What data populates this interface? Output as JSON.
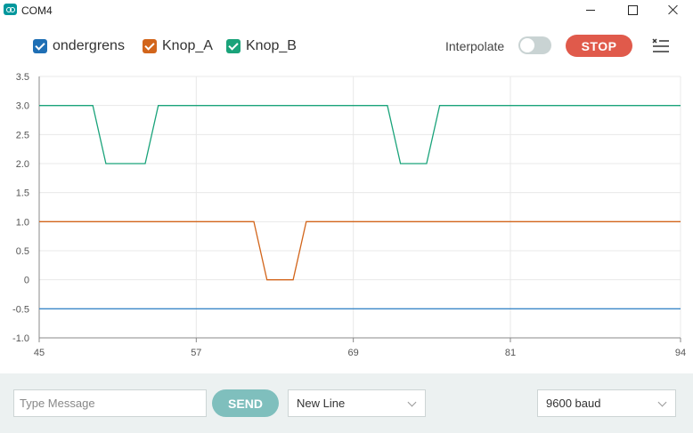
{
  "window": {
    "title": "COM4"
  },
  "toolbar": {
    "interpolate_label": "Interpolate",
    "interpolate_on": false,
    "stop_label": "STOP"
  },
  "legend": [
    {
      "label": "ondergrens",
      "color": "#1f77b4",
      "checked": true
    },
    {
      "label": "Knop_A",
      "color": "#d2651b",
      "checked": true
    },
    {
      "label": "Knop_B",
      "color": "#1aa37a",
      "checked": true
    }
  ],
  "chart_data": {
    "type": "line",
    "x_ticks": [
      "45",
      "57",
      "69",
      "81",
      "94"
    ],
    "y_ticks": [
      "3.5",
      "3.0",
      "2.5",
      "2.0",
      "1.5",
      "1.0",
      "0.5",
      "0",
      "-0.5",
      "-1.0"
    ],
    "xlim": [
      45,
      94
    ],
    "ylim": [
      -1.0,
      3.5
    ],
    "grid": true,
    "series": [
      {
        "name": "ondergrens",
        "color": "#3b88c8",
        "x": [
          45,
          94
        ],
        "y": [
          -0.5,
          -0.5
        ]
      },
      {
        "name": "Knop_A",
        "color": "#d2651b",
        "x": [
          45,
          61.4,
          62.4,
          64.4,
          65.4,
          94
        ],
        "y": [
          1.0,
          1.0,
          0,
          0,
          1.0,
          1.0
        ]
      },
      {
        "name": "Knop_B",
        "color": "#1aa37a",
        "x": [
          45,
          49.1,
          50.1,
          53.1,
          54.1,
          71.6,
          72.6,
          74.6,
          75.6,
          94
        ],
        "y": [
          3.0,
          3.0,
          2.0,
          2.0,
          3.0,
          3.0,
          2.0,
          2.0,
          3.0,
          3.0
        ]
      }
    ]
  },
  "footer": {
    "message_placeholder": "Type Message",
    "send_label": "SEND",
    "line_ending": "New Line",
    "baud_rate": "9600 baud"
  }
}
